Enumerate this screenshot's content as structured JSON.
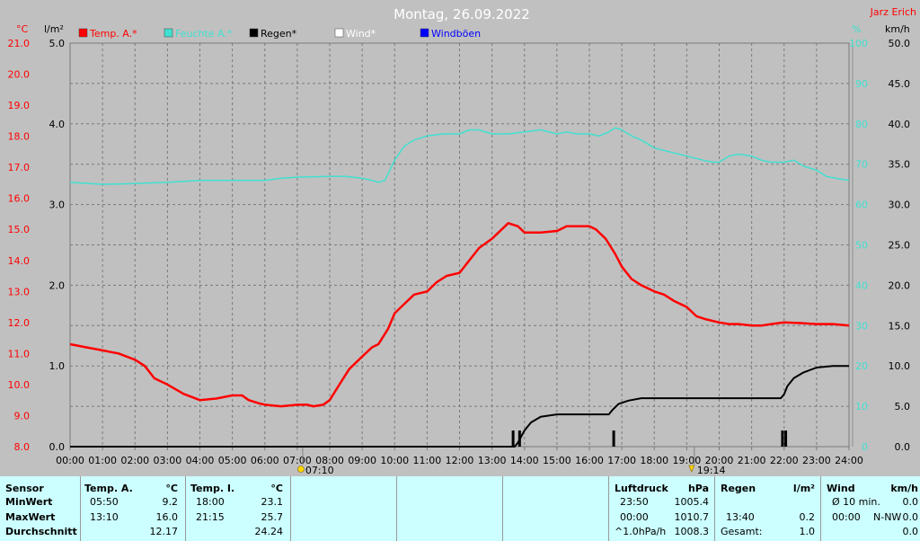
{
  "chart_data": {
    "type": "line",
    "title": "Montag, 26.09.2022",
    "author": "Jarz Erich",
    "legend": [
      {
        "label": "Temp. A.*",
        "color": "#ff0000"
      },
      {
        "label": "Feuchte A.*",
        "color": "#40e0d0"
      },
      {
        "label": "Regen*",
        "color": "#000000"
      },
      {
        "label": "Wind*",
        "color": "#ffffff"
      },
      {
        "label": "Windböen",
        "color": "#0000ff"
      }
    ],
    "axis_units": {
      "temp": "°C",
      "rain": "l/m²",
      "humidity": "%",
      "wind": "km/h"
    },
    "x_ticks": [
      "00:00",
      "01:00",
      "02:00",
      "03:00",
      "04:00",
      "05:00",
      "06:00",
      "07:00",
      "08:00",
      "09:00",
      "10:00",
      "11:00",
      "12:00",
      "13:00",
      "14:00",
      "15:00",
      "16:00",
      "17:00",
      "18:00",
      "19:00",
      "20:00",
      "21:00",
      "22:00",
      "23:00",
      "24:00"
    ],
    "temp_ticks": [
      "21.0",
      "20.0",
      "19.0",
      "18.0",
      "17.0",
      "16.0",
      "15.0",
      "14.0",
      "13.0",
      "12.0",
      "11.0",
      "10.0",
      "9.0",
      "8.0"
    ],
    "rain_ticks": [
      "5.0",
      "4.0",
      "3.0",
      "2.0",
      "1.0",
      "0.0"
    ],
    "humidity_ticks": [
      "100",
      "90",
      "80",
      "70",
      "60",
      "50",
      "40",
      "30",
      "20",
      "10",
      "0"
    ],
    "wind_ticks": [
      "50.0",
      "45.0",
      "40.0",
      "35.0",
      "30.0",
      "25.0",
      "20.0",
      "15.0",
      "10.0",
      "5.0",
      "0.0"
    ],
    "temp_range": [
      8,
      21
    ],
    "rain_range": [
      0,
      5
    ],
    "humidity_range": [
      0,
      100
    ],
    "wind_range": [
      0,
      50
    ],
    "sunrise": "07:10",
    "sunset": "19:14",
    "grid": true,
    "series": [
      {
        "name": "Temp. A.*",
        "color": "#ff0000",
        "axis": "temp",
        "points": [
          [
            0,
            11.3
          ],
          [
            0.5,
            11.2
          ],
          [
            1,
            11.1
          ],
          [
            1.5,
            11.0
          ],
          [
            2,
            10.8
          ],
          [
            2.3,
            10.6
          ],
          [
            2.6,
            10.2
          ],
          [
            3,
            10.0
          ],
          [
            3.5,
            9.7
          ],
          [
            4,
            9.5
          ],
          [
            4.5,
            9.55
          ],
          [
            5,
            9.65
          ],
          [
            5.3,
            9.65
          ],
          [
            5.5,
            9.5
          ],
          [
            5.8,
            9.4
          ],
          [
            6,
            9.35
          ],
          [
            6.5,
            9.3
          ],
          [
            7,
            9.35
          ],
          [
            7.3,
            9.35
          ],
          [
            7.5,
            9.3
          ],
          [
            7.8,
            9.35
          ],
          [
            8,
            9.5
          ],
          [
            8.3,
            10.0
          ],
          [
            8.6,
            10.5
          ],
          [
            9,
            10.9
          ],
          [
            9.3,
            11.2
          ],
          [
            9.5,
            11.3
          ],
          [
            9.8,
            11.8
          ],
          [
            10,
            12.3
          ],
          [
            10.3,
            12.6
          ],
          [
            10.6,
            12.9
          ],
          [
            11,
            13.0
          ],
          [
            11.3,
            13.3
          ],
          [
            11.6,
            13.5
          ],
          [
            12,
            13.6
          ],
          [
            12.3,
            14.0
          ],
          [
            12.6,
            14.4
          ],
          [
            13,
            14.7
          ],
          [
            13.3,
            15.0
          ],
          [
            13.5,
            15.2
          ],
          [
            13.8,
            15.1
          ],
          [
            14,
            14.9
          ],
          [
            14.5,
            14.9
          ],
          [
            15,
            14.95
          ],
          [
            15.3,
            15.1
          ],
          [
            15.6,
            15.1
          ],
          [
            16,
            15.1
          ],
          [
            16.2,
            15.0
          ],
          [
            16.5,
            14.7
          ],
          [
            16.8,
            14.2
          ],
          [
            17,
            13.8
          ],
          [
            17.3,
            13.4
          ],
          [
            17.6,
            13.2
          ],
          [
            18,
            13.0
          ],
          [
            18.3,
            12.9
          ],
          [
            18.6,
            12.7
          ],
          [
            19,
            12.5
          ],
          [
            19.3,
            12.2
          ],
          [
            19.6,
            12.1
          ],
          [
            20,
            12.0
          ],
          [
            20.3,
            11.95
          ],
          [
            20.6,
            11.95
          ],
          [
            21,
            11.9
          ],
          [
            21.3,
            11.9
          ],
          [
            21.6,
            11.95
          ],
          [
            22,
            12.0
          ],
          [
            22.5,
            11.98
          ],
          [
            23,
            11.95
          ],
          [
            23.5,
            11.95
          ],
          [
            24,
            11.9
          ]
        ]
      },
      {
        "name": "Feuchte A.*",
        "color": "#40e0d0",
        "axis": "humidity",
        "points": [
          [
            0,
            65.5
          ],
          [
            1,
            65.0
          ],
          [
            2,
            65.2
          ],
          [
            3,
            65.5
          ],
          [
            4,
            66.0
          ],
          [
            5,
            66.0
          ],
          [
            6,
            66.0
          ],
          [
            6.5,
            66.5
          ],
          [
            7,
            66.8
          ],
          [
            8,
            67.0
          ],
          [
            8.5,
            67.0
          ],
          [
            9,
            66.5
          ],
          [
            9.3,
            66.0
          ],
          [
            9.5,
            65.5
          ],
          [
            9.7,
            66.0
          ],
          [
            10,
            71.0
          ],
          [
            10.3,
            74.5
          ],
          [
            10.6,
            76.0
          ],
          [
            11,
            77.0
          ],
          [
            11.5,
            77.5
          ],
          [
            12,
            77.5
          ],
          [
            12.3,
            78.5
          ],
          [
            12.6,
            78.5
          ],
          [
            13,
            77.5
          ],
          [
            13.5,
            77.5
          ],
          [
            14,
            78.0
          ],
          [
            14.5,
            78.5
          ],
          [
            15,
            77.5
          ],
          [
            15.3,
            78.0
          ],
          [
            15.6,
            77.5
          ],
          [
            16,
            77.5
          ],
          [
            16.3,
            77.0
          ],
          [
            16.6,
            78.0
          ],
          [
            16.8,
            79.0
          ],
          [
            17,
            78.5
          ],
          [
            17.3,
            77.0
          ],
          [
            17.6,
            76.0
          ],
          [
            18,
            74.0
          ],
          [
            18.5,
            73.0
          ],
          [
            19,
            72.0
          ],
          [
            19.5,
            71.0
          ],
          [
            19.8,
            70.5
          ],
          [
            20,
            70.5
          ],
          [
            20.3,
            72.0
          ],
          [
            20.6,
            72.5
          ],
          [
            21,
            72.0
          ],
          [
            21.3,
            71.0
          ],
          [
            21.6,
            70.5
          ],
          [
            22,
            70.5
          ],
          [
            22.3,
            71.0
          ],
          [
            22.6,
            69.5
          ],
          [
            23,
            68.5
          ],
          [
            23.3,
            67.0
          ],
          [
            23.6,
            66.5
          ],
          [
            24,
            66.0
          ]
        ]
      },
      {
        "name": "Regen*",
        "color": "#000000",
        "axis": "rain",
        "points": [
          [
            0,
            0
          ],
          [
            13.7,
            0
          ],
          [
            13.8,
            0.05
          ],
          [
            14.0,
            0.2
          ],
          [
            14.2,
            0.3
          ],
          [
            14.5,
            0.37
          ],
          [
            15,
            0.4
          ],
          [
            15.5,
            0.4
          ],
          [
            16,
            0.4
          ],
          [
            16.6,
            0.4
          ],
          [
            16.7,
            0.45
          ],
          [
            16.9,
            0.53
          ],
          [
            17.2,
            0.57
          ],
          [
            17.6,
            0.6
          ],
          [
            18,
            0.6
          ],
          [
            19,
            0.6
          ],
          [
            20,
            0.6
          ],
          [
            21,
            0.6
          ],
          [
            21.9,
            0.6
          ],
          [
            22.0,
            0.65
          ],
          [
            22.1,
            0.75
          ],
          [
            22.3,
            0.85
          ],
          [
            22.6,
            0.92
          ],
          [
            23,
            0.98
          ],
          [
            23.5,
            1.0
          ],
          [
            24,
            1.0
          ]
        ]
      },
      {
        "name": "Regen-Impulse",
        "color": "#000000",
        "axis": "rain",
        "bars": [
          [
            13.65,
            0.2
          ],
          [
            13.85,
            0.2
          ],
          [
            16.75,
            0.2
          ],
          [
            21.95,
            0.2
          ],
          [
            22.05,
            0.2
          ]
        ]
      }
    ]
  },
  "stats": {
    "sensor": {
      "h": "Sensor",
      "min": "MinWert",
      "max": "MaxWert",
      "avg": "Durchschnitt"
    },
    "temp_a": {
      "h": "Temp. A.",
      "unit": "°C",
      "min_t": "05:50",
      "min_v": "9.2",
      "max_t": "13:10",
      "max_v": "16.0",
      "avg_v": "12.17"
    },
    "temp_i": {
      "h": "Temp. I.",
      "unit": "°C",
      "min_t": "18:00",
      "min_v": "23.1",
      "max_t": "21:15",
      "max_v": "25.7",
      "avg_v": "24.24"
    },
    "pressure": {
      "h": "Luftdruck",
      "unit": "hPa",
      "r1_t": "23:50",
      "r1_v": "1005.4",
      "r2_t": "00:00",
      "r2_v": "1010.7",
      "r3_t": "^1.0hPa/h",
      "r3_v": "1008.3"
    },
    "rain": {
      "h": "Regen",
      "unit": "l/m²",
      "r2_t": "13:40",
      "r2_v": "0.2",
      "r3_t": "Gesamt:",
      "r3_v": "1.0"
    },
    "wind": {
      "h": "Wind",
      "unit": "km/h",
      "r1_t": "Ø 10 min.",
      "r1_v": "0.0",
      "r2_t": "00:00",
      "r2_d": "N-NW",
      "r2_v": "0.0",
      "r3_v": "0.0"
    }
  }
}
